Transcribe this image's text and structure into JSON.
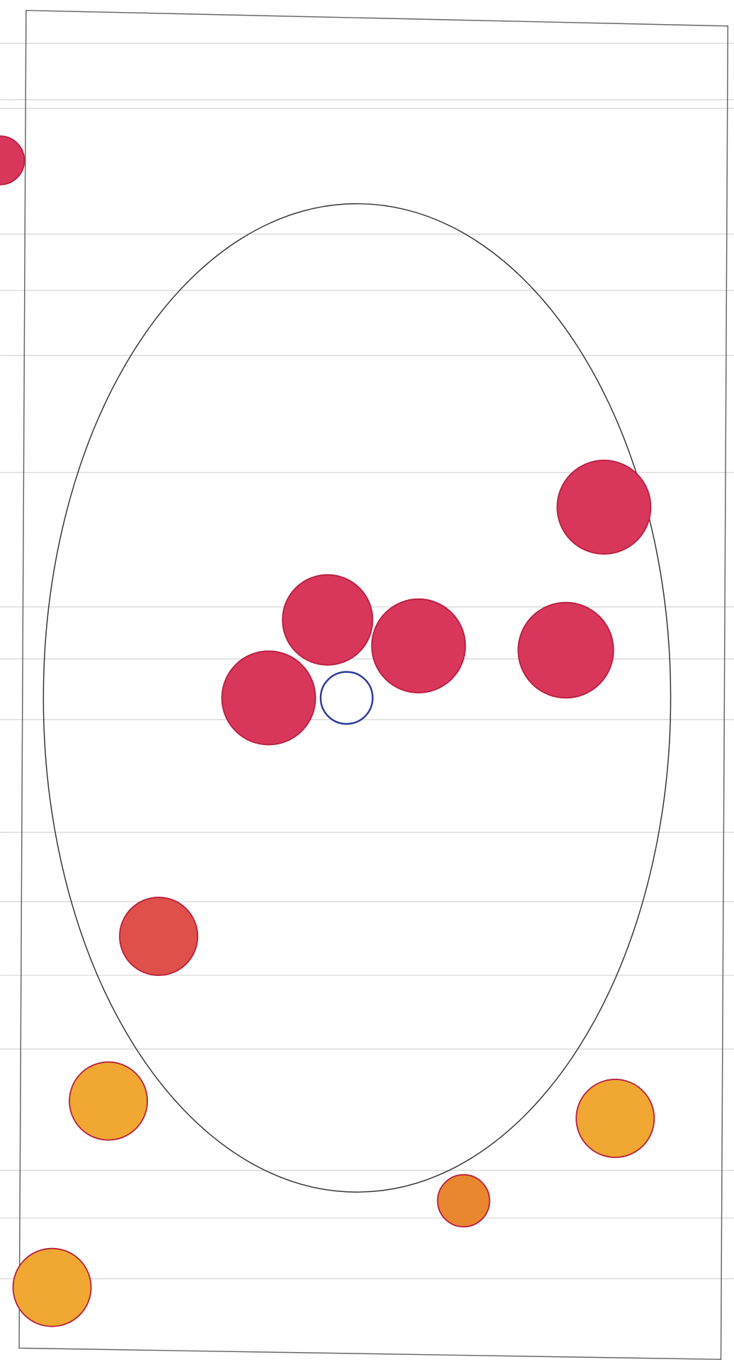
{
  "nodes": [
    {
      "color": "#d9365c"
    },
    {
      "color": "#d9365c"
    },
    {
      "color": "#d9365c"
    },
    {
      "color": "#d9365c"
    },
    {
      "color": "#d9365c"
    },
    {
      "color": "#d9365c"
    },
    {
      "color": "#ffffff"
    },
    {
      "color": "#e0504a"
    },
    {
      "color": "#f0a832"
    },
    {
      "color": "#f0a832"
    },
    {
      "color": "#e8872e"
    },
    {
      "color": "#f0a832"
    }
  ]
}
